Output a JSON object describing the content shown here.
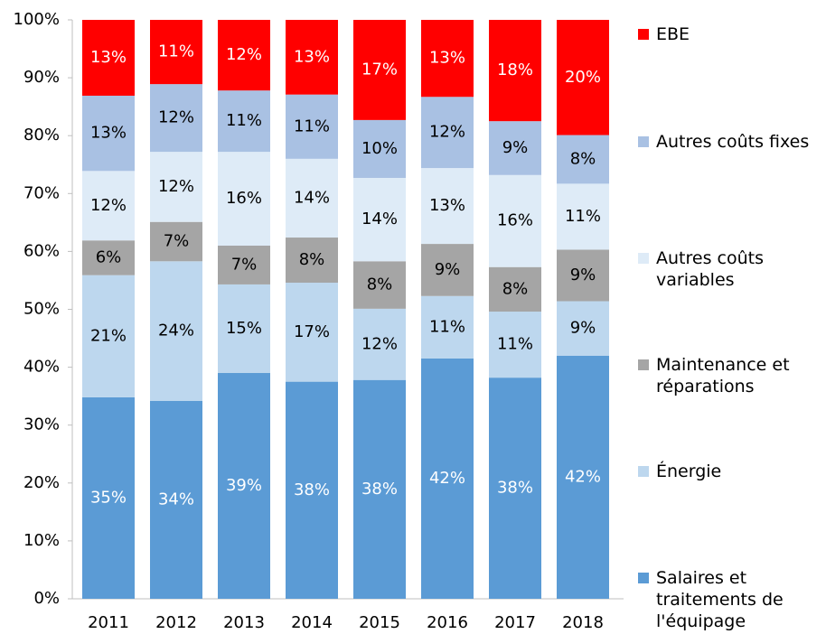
{
  "chart_data": {
    "type": "stacked_bar",
    "categories": [
      "2011",
      "2012",
      "2013",
      "2014",
      "2015",
      "2016",
      "2017",
      "2018"
    ],
    "series": [
      {
        "name": "Salaires et traitements de l'équipage",
        "color": "#5b9bd5",
        "label_color": "#ffffff",
        "values": [
          34.8,
          34.2,
          39.0,
          37.5,
          37.8,
          41.5,
          38.2,
          42.0
        ],
        "value_labels": [
          "35%",
          "34%",
          "39%",
          "38%",
          "38%",
          "42%",
          "38%",
          "42%"
        ]
      },
      {
        "name": "Énergie",
        "color": "#bdd7ee",
        "label_color": "#000000",
        "values": [
          21.1,
          24.1,
          15.3,
          17.1,
          12.3,
          10.8,
          11.4,
          9.4
        ],
        "value_labels": [
          "21%",
          "24%",
          "15%",
          "17%",
          "12%",
          "11%",
          "11%",
          "9%"
        ]
      },
      {
        "name": "Maintenance et réparations",
        "color": "#a5a5a5",
        "label_color": "#000000",
        "values": [
          6.0,
          6.8,
          6.7,
          7.8,
          8.2,
          9.0,
          7.7,
          8.9
        ],
        "value_labels": [
          "6%",
          "7%",
          "7%",
          "8%",
          "8%",
          "9%",
          "8%",
          "9%"
        ]
      },
      {
        "name": "Autres coûts variables",
        "color": "#deebf7",
        "label_color": "#000000",
        "values": [
          12.0,
          12.1,
          16.2,
          13.6,
          14.4,
          13.1,
          15.9,
          11.4
        ],
        "value_labels": [
          "12%",
          "12%",
          "16%",
          "14%",
          "14%",
          "13%",
          "16%",
          "11%"
        ]
      },
      {
        "name": "Autres coûts fixes",
        "color": "#a9c1e3",
        "label_color": "#000000",
        "values": [
          13.0,
          11.7,
          10.6,
          11.1,
          10.0,
          12.3,
          9.3,
          8.4
        ],
        "value_labels": [
          "13%",
          "12%",
          "11%",
          "11%",
          "10%",
          "12%",
          "9%",
          "8%"
        ]
      },
      {
        "name": "EBE",
        "color": "#ff0000",
        "label_color": "#ffffff",
        "values": [
          13.1,
          11.1,
          12.2,
          12.9,
          17.3,
          13.3,
          17.5,
          19.9
        ],
        "value_labels": [
          "13%",
          "11%",
          "12%",
          "13%",
          "17%",
          "13%",
          "18%",
          "20%"
        ]
      }
    ],
    "ylim": [
      0,
      100
    ],
    "yticks": [
      {
        "value": 0,
        "label": "0%"
      },
      {
        "value": 10,
        "label": "10%"
      },
      {
        "value": 20,
        "label": "20%"
      },
      {
        "value": 30,
        "label": "30%"
      },
      {
        "value": 40,
        "label": "40%"
      },
      {
        "value": 50,
        "label": "50%"
      },
      {
        "value": 60,
        "label": "60%"
      },
      {
        "value": 70,
        "label": "70%"
      },
      {
        "value": 80,
        "label": "80%"
      },
      {
        "value": 90,
        "label": "90%"
      },
      {
        "value": 100,
        "label": "100%"
      }
    ],
    "legend": "right"
  }
}
